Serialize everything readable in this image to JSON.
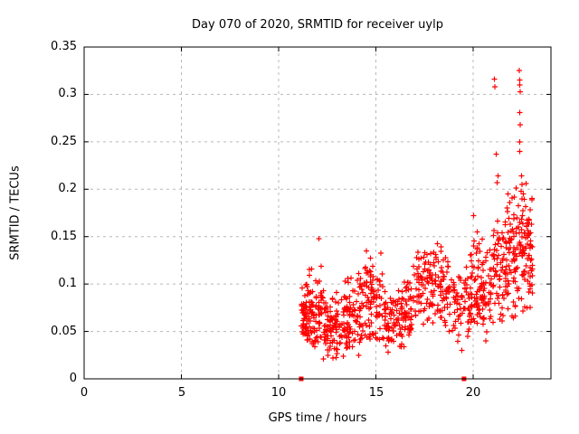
{
  "chart_data": {
    "type": "scatter",
    "title": "Day 070 of 2020, SRMTID for receiver uylp",
    "xlabel": "GPS time / hours",
    "ylabel": "SRMTID / TECUs",
    "xlim": [
      0,
      24
    ],
    "ylim": [
      0,
      0.35
    ],
    "xticks": [
      0,
      5,
      10,
      15,
      20
    ],
    "yticks": [
      0,
      0.05,
      0.1,
      0.15,
      0.2,
      0.25,
      0.3,
      0.35
    ],
    "xtick_labels": [
      "0",
      "5",
      "10",
      "15",
      "20"
    ],
    "ytick_labels": [
      "0",
      "0.05",
      "0.1",
      "0.15",
      "0.2",
      "0.25",
      "0.3",
      "0.35"
    ],
    "grid": true,
    "legend": "none",
    "colors": {
      "marker": "#ff0000",
      "grid": "#b8b8b8",
      "axis": "#000000",
      "background": "#ffffff"
    },
    "series": [
      {
        "name": "srmtid-values",
        "marker": "plus",
        "seed": 1337,
        "cluster_model_fields": [
          "t_start",
          "t_end",
          "count",
          "mean_start",
          "mean_end",
          "sd",
          "y_min",
          "y_max"
        ],
        "cluster_model": [
          [
            11.15,
            11.7,
            70,
            0.068,
            0.075,
            0.02,
            0.04,
            0.135
          ],
          [
            11.7,
            12.45,
            75,
            0.07,
            0.062,
            0.022,
            0.033,
            0.148
          ],
          [
            12.45,
            13.45,
            85,
            0.055,
            0.058,
            0.016,
            0.022,
            0.105
          ],
          [
            13.45,
            14.35,
            85,
            0.065,
            0.08,
            0.02,
            0.03,
            0.132
          ],
          [
            14.35,
            15.35,
            85,
            0.09,
            0.085,
            0.025,
            0.04,
            0.156
          ],
          [
            15.35,
            16.45,
            85,
            0.066,
            0.062,
            0.016,
            0.025,
            0.11
          ],
          [
            16.45,
            17.15,
            55,
            0.075,
            0.09,
            0.02,
            0.045,
            0.13
          ],
          [
            17.15,
            18.75,
            130,
            0.1,
            0.1,
            0.022,
            0.055,
            0.148
          ],
          [
            18.75,
            19.85,
            65,
            0.082,
            0.08,
            0.022,
            0.03,
            0.13
          ],
          [
            19.85,
            20.45,
            60,
            0.1,
            0.095,
            0.025,
            0.05,
            0.17
          ],
          [
            20.45,
            21.25,
            65,
            0.1,
            0.11,
            0.028,
            0.04,
            0.185
          ],
          [
            21.25,
            22.05,
            80,
            0.12,
            0.13,
            0.03,
            0.06,
            0.21
          ],
          [
            22.05,
            22.75,
            80,
            0.13,
            0.14,
            0.035,
            0.05,
            0.225
          ],
          [
            22.75,
            23.05,
            45,
            0.13,
            0.14,
            0.03,
            0.06,
            0.205
          ]
        ],
        "outlier_points": [
          [
            21.1,
            0.316
          ],
          [
            21.12,
            0.308
          ],
          [
            22.38,
            0.325
          ],
          [
            22.4,
            0.315
          ],
          [
            22.4,
            0.31
          ],
          [
            22.42,
            0.303
          ],
          [
            22.4,
            0.281
          ],
          [
            22.41,
            0.268
          ],
          [
            22.4,
            0.25
          ],
          [
            22.4,
            0.24
          ],
          [
            21.18,
            0.237
          ],
          [
            21.28,
            0.214
          ],
          [
            21.24,
            0.207
          ],
          [
            22.48,
            0.214
          ],
          [
            22.52,
            0.205
          ],
          [
            22.46,
            0.198
          ],
          [
            22.58,
            0.195
          ],
          [
            22.5,
            0.19
          ],
          [
            20.02,
            0.172
          ],
          [
            12.08,
            0.148
          ],
          [
            12.3,
            0.021
          ],
          [
            12.78,
            0.022
          ],
          [
            14.12,
            0.025
          ],
          [
            15.62,
            0.028
          ],
          [
            19.42,
            0.03
          ],
          [
            20.65,
            0.04
          ]
        ]
      },
      {
        "name": "axis-event-markers",
        "marker": "filled-square",
        "points": [
          [
            11.16,
            0
          ],
          [
            19.53,
            0
          ]
        ]
      }
    ]
  }
}
